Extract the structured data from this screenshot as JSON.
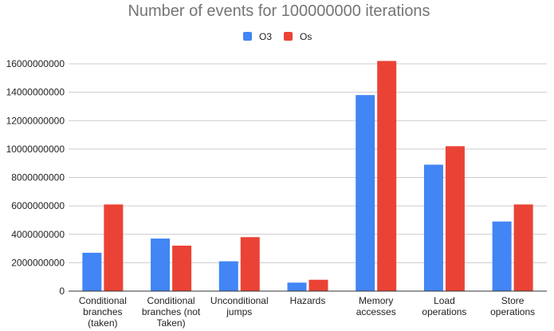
{
  "chart_data": {
    "type": "bar",
    "title": "Number of events for 100000000 iterations",
    "xlabel": "",
    "ylabel": "",
    "ylim": [
      0,
      16000000000
    ],
    "yticks": [
      0,
      2000000000,
      4000000000,
      6000000000,
      8000000000,
      10000000000,
      12000000000,
      14000000000,
      16000000000
    ],
    "ytick_labels": [
      "0",
      "2000000000",
      "4000000000",
      "6000000000",
      "8000000000",
      "10000000000",
      "12000000000",
      "14000000000",
      "16000000000"
    ],
    "grid": true,
    "legend_position": "top-center",
    "categories": [
      [
        "Conditional",
        "branches",
        "(taken)"
      ],
      [
        "Conditional",
        "branches (not",
        "Taken)"
      ],
      [
        "Unconditional",
        "jumps"
      ],
      [
        "Hazards"
      ],
      [
        "Memory",
        "accesses"
      ],
      [
        "Load",
        "operations"
      ],
      [
        "Store",
        "operations"
      ]
    ],
    "series": [
      {
        "name": "O3",
        "color": "#4285f4",
        "values": [
          2700000000,
          3700000000,
          2100000000,
          600000000,
          13800000000,
          8900000000,
          4900000000
        ]
      },
      {
        "name": "Os",
        "color": "#ea4335",
        "values": [
          6100000000,
          3200000000,
          3800000000,
          800000000,
          16200000000,
          10200000000,
          6100000000
        ]
      }
    ]
  }
}
